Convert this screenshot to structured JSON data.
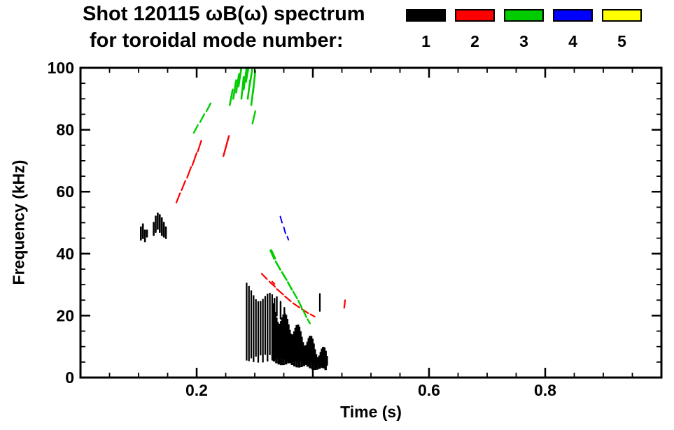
{
  "chart_data": {
    "type": "scatter",
    "title": "Shot 120115 ωB(ω) spectrum",
    "subtitle": "for toroidal mode number:",
    "xlabel": "Time (s)",
    "ylabel": "Frequency (kHz)",
    "xlim": [
      0.0,
      1.0
    ],
    "ylim": [
      0,
      100
    ],
    "x_major_ticks": [
      0.2,
      0.4,
      0.6,
      0.8
    ],
    "x_minor_step": 0.05,
    "x_tick_labels": [
      {
        "value": 0.2,
        "label": "0.2"
      },
      {
        "value": 0.6,
        "label": "0.6"
      },
      {
        "value": 0.8,
        "label": "0.8"
      }
    ],
    "y_major_ticks": [
      0,
      20,
      40,
      60,
      80,
      100
    ],
    "y_minor_step": 5,
    "y_tick_labels": [
      "0",
      "20",
      "40",
      "60",
      "80",
      "100"
    ],
    "grid": false,
    "axis_color": "#000000",
    "legend": {
      "position": "top-right",
      "entries": [
        {
          "label": "1",
          "color": "#000000"
        },
        {
          "label": "2",
          "color": "#ff0000"
        },
        {
          "label": "3",
          "color": "#00cc00"
        },
        {
          "label": "4",
          "color": "#0000ff"
        },
        {
          "label": "5",
          "color": "#ffff00"
        }
      ]
    },
    "series": [
      {
        "name": "1",
        "mode": 1,
        "color": "#000000",
        "width": 2.6,
        "strokes": [
          {
            "w": 2.6,
            "pts": [
              [
                0.104,
                44.5
              ],
              [
                0.104,
                48.5
              ]
            ]
          },
          {
            "w": 2.6,
            "pts": [
              [
                0.1075,
                45.0
              ],
              [
                0.1075,
                49.5
              ]
            ]
          },
          {
            "w": 2.6,
            "pts": [
              [
                0.111,
                44.0
              ],
              [
                0.111,
                47.5
              ]
            ]
          },
          {
            "w": 2.6,
            "pts": [
              [
                0.1145,
                45.5
              ],
              [
                0.1145,
                47.5
              ]
            ]
          },
          {
            "w": 2.6,
            "pts": [
              [
                0.126,
                46.0
              ],
              [
                0.126,
                50.0
              ]
            ]
          },
          {
            "w": 2.6,
            "pts": [
              [
                0.1295,
                47.0
              ],
              [
                0.1295,
                52.0
              ]
            ]
          },
          {
            "w": 2.6,
            "pts": [
              [
                0.133,
                48.0
              ],
              [
                0.133,
                53.0
              ]
            ]
          },
          {
            "w": 2.6,
            "pts": [
              [
                0.1365,
                47.0
              ],
              [
                0.1365,
                52.5
              ]
            ]
          },
          {
            "w": 2.6,
            "pts": [
              [
                0.14,
                46.0
              ],
              [
                0.14,
                51.5
              ]
            ]
          },
          {
            "w": 2.6,
            "pts": [
              [
                0.1435,
                45.5
              ],
              [
                0.1435,
                50.0
              ]
            ]
          },
          {
            "w": 2.6,
            "pts": [
              [
                0.147,
                45.0
              ],
              [
                0.147,
                48.5
              ]
            ]
          },
          {
            "w": 2.4,
            "pts": [
              [
                0.338,
                20.0
              ],
              [
                0.338,
                26.0
              ]
            ]
          },
          {
            "w": 2.4,
            "pts": [
              [
                0.3445,
                19.0
              ],
              [
                0.3445,
                24.5
              ]
            ]
          },
          {
            "w": 2.4,
            "pts": [
              [
                0.351,
                18.0
              ],
              [
                0.351,
                22.5
              ]
            ]
          },
          {
            "w": 2.2,
            "pts": [
              [
                0.412,
                21.5
              ],
              [
                0.412,
                27.0
              ]
            ]
          }
        ],
        "bands": [
          {
            "t0": 0.286,
            "t1": 0.334,
            "top0": 28.5,
            "top1": 24.5,
            "bot0": 5.5,
            "bot1": 6.5,
            "count": 13,
            "w": 2.3,
            "jt": 2.2,
            "jb": 1.2
          },
          {
            "t0": 0.331,
            "t1": 0.424,
            "top0": 21.5,
            "top1": 6.5,
            "bot0": 5.5,
            "bot1": 3.0,
            "count": 46,
            "w": 3.4,
            "jt": 2.6,
            "jb": 1.1
          }
        ]
      },
      {
        "name": "2",
        "mode": 2,
        "color": "#ff0000",
        "width": 2.2,
        "strokes": [
          {
            "w": 2.2,
            "pts": [
              [
                0.165,
                56.5
              ],
              [
                0.1715,
                59.5
              ]
            ]
          },
          {
            "w": 2.2,
            "pts": [
              [
                0.174,
                60.5
              ],
              [
                0.1805,
                63.5
              ]
            ]
          },
          {
            "w": 2.2,
            "pts": [
              [
                0.1835,
                64.5
              ],
              [
                0.1905,
                68.0
              ]
            ]
          },
          {
            "w": 2.2,
            "pts": [
              [
                0.1925,
                68.5
              ],
              [
                0.2,
                72.5
              ]
            ]
          },
          {
            "w": 2.2,
            "pts": [
              [
                0.202,
                73.0
              ],
              [
                0.208,
                76.5
              ]
            ]
          },
          {
            "w": 2.4,
            "pts": [
              [
                0.246,
                71.5
              ],
              [
                0.2555,
                78.0
              ]
            ]
          },
          {
            "w": 2.2,
            "pts": [
              [
                0.312,
                33.5
              ],
              [
                0.321,
                31.8
              ]
            ]
          },
          {
            "w": 2.2,
            "pts": [
              [
                0.325,
                31.0
              ],
              [
                0.335,
                29.3
              ]
            ]
          },
          {
            "w": 2.2,
            "pts": [
              [
                0.338,
                28.6
              ],
              [
                0.349,
                26.8
              ]
            ]
          },
          {
            "w": 2.2,
            "pts": [
              [
                0.352,
                26.2
              ],
              [
                0.362,
                24.6
              ]
            ]
          },
          {
            "w": 2.2,
            "pts": [
              [
                0.366,
                24.0
              ],
              [
                0.377,
                22.6
              ]
            ]
          },
          {
            "w": 2.2,
            "pts": [
              [
                0.381,
                22.1
              ],
              [
                0.392,
                20.8
              ]
            ]
          },
          {
            "w": 2.2,
            "pts": [
              [
                0.396,
                20.4
              ],
              [
                0.403,
                19.7
              ]
            ]
          },
          {
            "w": 2.2,
            "pts": [
              [
                0.33,
                31.0
              ],
              [
                0.334,
                30.2
              ]
            ]
          },
          {
            "w": 2.2,
            "pts": [
              [
                0.454,
                22.5
              ],
              [
                0.4555,
                25.0
              ]
            ]
          }
        ],
        "bands": []
      },
      {
        "name": "3",
        "mode": 3,
        "color": "#00cc00",
        "width": 2.4,
        "strokes": [
          {
            "w": 2.4,
            "pts": [
              [
                0.195,
                79.0
              ],
              [
                0.202,
                81.5
              ]
            ]
          },
          {
            "w": 2.4,
            "pts": [
              [
                0.206,
                82.5
              ],
              [
                0.213,
                85.0
              ]
            ]
          },
          {
            "w": 2.4,
            "pts": [
              [
                0.217,
                86.0
              ],
              [
                0.224,
                88.5
              ]
            ]
          },
          {
            "w": 2.6,
            "pts": [
              [
                0.257,
                88.0
              ],
              [
                0.262,
                93.0
              ]
            ]
          },
          {
            "w": 2.6,
            "pts": [
              [
                0.263,
                90.0
              ],
              [
                0.268,
                96.0
              ]
            ]
          },
          {
            "w": 2.6,
            "pts": [
              [
                0.268,
                92.0
              ],
              [
                0.273,
                98.0
              ]
            ]
          },
          {
            "w": 2.6,
            "pts": [
              [
                0.272,
                94.0
              ],
              [
                0.277,
                100.0
              ]
            ]
          },
          {
            "w": 2.6,
            "pts": [
              [
                0.277,
                90.0
              ],
              [
                0.281,
                97.0
              ]
            ]
          },
          {
            "w": 2.6,
            "pts": [
              [
                0.281,
                93.0
              ],
              [
                0.286,
                100.0
              ]
            ]
          },
          {
            "w": 2.6,
            "pts": [
              [
                0.285,
                95.5
              ],
              [
                0.289,
                100.0
              ]
            ]
          },
          {
            "w": 2.6,
            "pts": [
              [
                0.288,
                90.0
              ],
              [
                0.292,
                96.0
              ]
            ]
          },
          {
            "w": 2.6,
            "pts": [
              [
                0.291,
                94.0
              ],
              [
                0.296,
                100.0
              ]
            ]
          },
          {
            "w": 2.6,
            "pts": [
              [
                0.294,
                88.0
              ],
              [
                0.298,
                94.0
              ]
            ]
          },
          {
            "w": 2.6,
            "pts": [
              [
                0.297,
                92.0
              ],
              [
                0.301,
                99.0
              ]
            ]
          },
          {
            "w": 2.4,
            "pts": [
              [
                0.296,
                82.0
              ],
              [
                0.301,
                86.0
              ]
            ]
          },
          {
            "w": 4.0,
            "pts": [
              [
                0.328,
                41.0
              ],
              [
                0.334,
                38.5
              ]
            ]
          },
          {
            "w": 2.6,
            "pts": [
              [
                0.336,
                37.5
              ],
              [
                0.344,
                34.8
              ]
            ]
          },
          {
            "w": 2.6,
            "pts": [
              [
                0.347,
                34.0
              ],
              [
                0.355,
                31.5
              ]
            ]
          },
          {
            "w": 2.6,
            "pts": [
              [
                0.357,
                30.8
              ],
              [
                0.364,
                28.4
              ]
            ]
          },
          {
            "w": 2.4,
            "pts": [
              [
                0.366,
                27.8
              ],
              [
                0.373,
                25.5
              ]
            ]
          },
          {
            "w": 2.4,
            "pts": [
              [
                0.375,
                24.8
              ],
              [
                0.381,
                22.5
              ]
            ]
          },
          {
            "w": 2.4,
            "pts": [
              [
                0.383,
                21.8
              ],
              [
                0.389,
                19.5
              ]
            ]
          },
          {
            "w": 2.4,
            "pts": [
              [
                0.391,
                18.8
              ],
              [
                0.395,
                17.5
              ]
            ]
          }
        ],
        "bands": []
      },
      {
        "name": "4",
        "mode": 4,
        "color": "#0000ff",
        "width": 2.0,
        "strokes": [
          {
            "w": 2.0,
            "pts": [
              [
                0.344,
                52.0
              ],
              [
                0.347,
                50.0
              ]
            ]
          },
          {
            "w": 2.0,
            "pts": [
              [
                0.35,
                48.5
              ],
              [
                0.353,
                46.5
              ]
            ]
          },
          {
            "w": 2.0,
            "pts": [
              [
                0.356,
                45.5
              ],
              [
                0.358,
                44.5
              ]
            ]
          }
        ],
        "bands": []
      },
      {
        "name": "5",
        "mode": 5,
        "color": "#ffff00",
        "width": 2.0,
        "strokes": [],
        "bands": []
      }
    ]
  }
}
